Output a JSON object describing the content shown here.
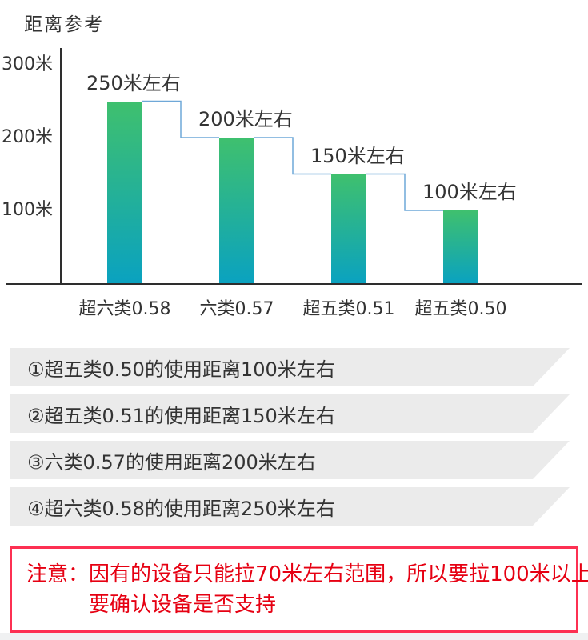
{
  "title": "距离参考",
  "chart_data": {
    "type": "bar",
    "title": "距离参考",
    "categories": [
      "超六类0.58",
      "六类0.57",
      "超五类0.51",
      "超五类0.50"
    ],
    "values": [
      250,
      200,
      150,
      100
    ],
    "data_labels": [
      "250米左右",
      "200米左右",
      "150米左右",
      "100米左右"
    ],
    "yticks": [
      {
        "value": 300,
        "label": "300米"
      },
      {
        "value": 200,
        "label": "200米"
      },
      {
        "value": 100,
        "label": "100米"
      }
    ],
    "ylim": [
      0,
      330
    ],
    "xlabel": "",
    "ylabel": "",
    "grid": false,
    "legend": false,
    "bar_gradient_top": "#3fc06e",
    "bar_gradient_bottom": "#0aa2c0",
    "step_line_color": "#6fa8d8",
    "axis_color": "#2e2e2e"
  },
  "notes": [
    "①超五类0.50的使用距离100米左右",
    "②超五类0.51的使用距离150米左右",
    "③六类0.57的使用距离200米左右",
    "④超六类0.58的使用距离250米左右"
  ],
  "notice": {
    "prefix": "注意：",
    "lines": [
      "因有的设备只能拉70米左右范围，所以要拉100米以上",
      "要确认设备是否支持"
    ]
  },
  "colors": {
    "text": "#333333",
    "banner_gray": "#ebebeb",
    "notice_border": "#fd3052",
    "notice_text": "#e60012"
  }
}
